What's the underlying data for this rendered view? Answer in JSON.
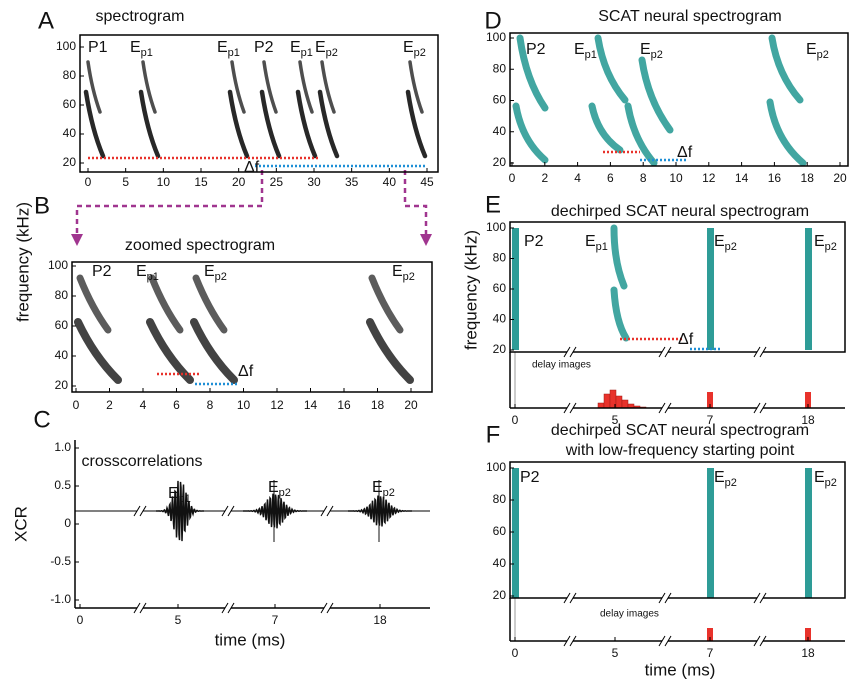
{
  "figure": {
    "ylabel": "frequency (kHz)",
    "A": {
      "letter": "A",
      "title": "spectrogram",
      "xlim": [
        0,
        45
      ],
      "ylim": [
        20,
        100
      ],
      "xticks": [
        0,
        5,
        10,
        15,
        20,
        25,
        30,
        35,
        40,
        45
      ],
      "yticks": [
        20,
        40,
        60,
        80,
        100
      ],
      "annotations": [
        {
          "base": "P1",
          "color": "#1fa34a"
        },
        {
          "base": "E",
          "sub": "p1",
          "color": "#1fa34a"
        },
        {
          "base": "E",
          "sub": "p1",
          "color": "#1fa34a"
        },
        {
          "base": "P2",
          "color": "#e8322b"
        },
        {
          "base": "E",
          "sub": "p1",
          "color": "#1fa34a"
        },
        {
          "base": "E",
          "sub": "p2",
          "color": "#e8322b"
        },
        {
          "base": "E",
          "sub": "p2",
          "color": "#e8322b"
        }
      ],
      "delta": "Δf"
    },
    "B": {
      "letter": "B",
      "title": "zoomed spectrogram",
      "xlim": [
        0,
        20
      ],
      "ylim": [
        20,
        100
      ],
      "xticks": [
        0,
        2,
        4,
        6,
        8,
        10,
        12,
        14,
        16,
        18,
        20
      ],
      "yticks": [
        20,
        40,
        60,
        80,
        100
      ],
      "annotations": [
        {
          "base": "P2",
          "color": "#e8322b"
        },
        {
          "base": "E",
          "sub": "p1",
          "color": "#1fa34a"
        },
        {
          "base": "E",
          "sub": "p2",
          "color": "#e8322b"
        },
        {
          "base": "E",
          "sub": "p2",
          "color": "#e8322b"
        }
      ],
      "delta": "Δf"
    },
    "C": {
      "letter": "C",
      "title": "crosscorrelations",
      "ylabel": "XCR",
      "xlabel": "time (ms)",
      "xticks": [
        0,
        5,
        7,
        18
      ],
      "ylim": [
        -1,
        1
      ],
      "yticks": [
        {
          "value": 1,
          "label": "1.0"
        },
        {
          "value": 0.5,
          "label": "0.5"
        },
        0,
        {
          "value": -0.5,
          "label": "-0.5"
        },
        {
          "value": -1,
          "label": "-1.0"
        }
      ],
      "annotations": [
        {
          "base": "E",
          "sub": "p1",
          "color": "#1fa34a"
        },
        {
          "base": "E",
          "sub": "p2",
          "color": "#e8322b"
        },
        {
          "base": "E",
          "sub": "p2",
          "color": "#e8322b"
        }
      ]
    },
    "D": {
      "letter": "D",
      "title": "SCAT neural spectrogram",
      "xlim": [
        0,
        20
      ],
      "ylim": [
        20,
        100
      ],
      "xticks": [
        0,
        2,
        4,
        6,
        8,
        10,
        12,
        14,
        16,
        18,
        20
      ],
      "yticks": [
        20,
        40,
        60,
        80,
        100
      ],
      "annotations": [
        {
          "base": "P2",
          "color": "#e8322b"
        },
        {
          "base": "E",
          "sub": "p1",
          "color": "#1fa34a"
        },
        {
          "base": "E",
          "sub": "p2",
          "color": "#e8322b"
        },
        {
          "base": "E",
          "sub": "p2",
          "color": "#e8322b"
        }
      ],
      "delta": "Δf"
    },
    "E": {
      "letter": "E",
      "title": "dechirped SCAT neural spectrogram",
      "ylabel": "frequency (kHz)",
      "xticks": [
        0,
        5,
        7,
        18
      ],
      "ylim": [
        20,
        100
      ],
      "yticks": [
        20,
        40,
        60,
        80,
        100
      ],
      "annotations": [
        {
          "base": "P2",
          "color": "#e8322b"
        },
        {
          "base": "E",
          "sub": "p1",
          "color": "#1fa34a"
        },
        {
          "base": "E",
          "sub": "p2",
          "color": "#e8322b"
        },
        {
          "base": "E",
          "sub": "p2",
          "color": "#e8322b"
        }
      ],
      "delta": "Δf",
      "delay_label": "delay images"
    },
    "F": {
      "letter": "F",
      "title": [
        "dechirped SCAT neural spectrogram",
        "with low-frequency starting point"
      ],
      "xlabel": "time (ms)",
      "xticks": [
        0,
        5,
        7,
        18
      ],
      "ylim": [
        20,
        100
      ],
      "yticks": [
        20,
        40,
        60,
        80,
        100
      ],
      "annotations": [
        {
          "base": "P2",
          "color": "#e8322b"
        },
        {
          "base": "E",
          "sub": "p2",
          "color": "#e8322b"
        },
        {
          "base": "E",
          "sub": "p2",
          "color": "#e8322b"
        }
      ],
      "delay_label": "delay images"
    }
  }
}
